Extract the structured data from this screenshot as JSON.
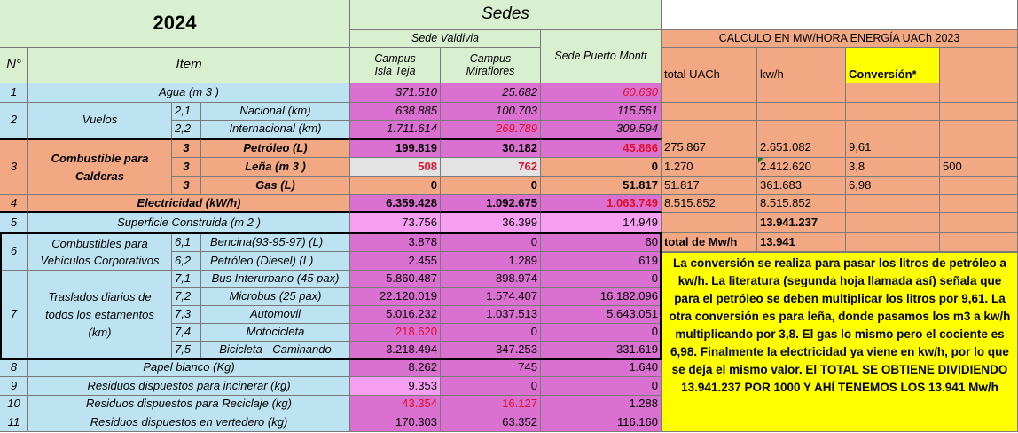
{
  "header": {
    "year": "2024",
    "sedes": "Sedes",
    "sede_valdivia": "Sede Valdivia",
    "campus_isla_teja": "Campus\nIsla Teja",
    "campus_miraflores": "Campus\nMiraflores",
    "sede_puerto_montt": "Sede Puerto Montt",
    "no": "N°",
    "item": "Item",
    "calc_title": "CALCULO EN MW/HORA ENERGÍA UACh 2023",
    "total_uach": "total UACh",
    "kwh": "kw/h",
    "conversion": "Conversión*"
  },
  "rows": {
    "r1": {
      "no": "1",
      "item": "Agua (m 3 )",
      "v1": "371.510",
      "v2": "25.682",
      "v3": "60.630"
    },
    "vuelos": {
      "no": "2",
      "label": "Vuelos"
    },
    "r21": {
      "sub": "2,1",
      "item": "Nacional (km)",
      "v1": "638.885",
      "v2": "100.703",
      "v3": "115.561"
    },
    "r22": {
      "sub": "2,2",
      "item": "Internacional (km)",
      "v1": "1.711.614",
      "v2": "269.789",
      "v3": "309.594"
    },
    "comb": {
      "no": "3",
      "label": "Combustible para Calderas"
    },
    "r3a": {
      "sub": "3",
      "item": "Petróleo (L)",
      "v1": "199.819",
      "v2": "30.182",
      "v3": "45.866",
      "t": "275.867",
      "k": "2.651.082",
      "cv": "9,61"
    },
    "r3b": {
      "sub": "3",
      "item": "Leña (m 3 )",
      "v1": "508",
      "v2": "762",
      "v3": "0",
      "t": "1.270",
      "k": "2.412.620",
      "cv": "3,8",
      "x": "500"
    },
    "r3c": {
      "sub": "3",
      "item": "Gas (L)",
      "v1": "0",
      "v2": "0",
      "v3": "51.817",
      "t": "51.817",
      "k": "361.683",
      "cv": "6,98"
    },
    "r4": {
      "no": "4",
      "item": "Electricidad (kW/h)",
      "v1": "6.359.428",
      "v2": "1.092.675",
      "v3": "1.063.749",
      "t": "8.515.852",
      "k": "8.515.852"
    },
    "r5": {
      "no": "5",
      "item": "Superficie Construida (m 2 )",
      "v1": "73.756",
      "v2": "36.399",
      "v3": "14.949",
      "k": "13.941.237"
    },
    "veh": {
      "no": "6",
      "label": "Combustibles para Vehículos Corporativos"
    },
    "r61": {
      "sub": "6,1",
      "item": "Bencina(93-95-97) (L)",
      "v1": "3.878",
      "v2": "0",
      "v3": "60",
      "t": "total de Mw/h",
      "k": "13.941"
    },
    "r62": {
      "sub": "6,2",
      "item": "Petróleo (Diesel) (L)",
      "v1": "2.455",
      "v2": "1.289",
      "v3": "619"
    },
    "tras": {
      "no": "7",
      "label": "Traslados diarios de todos los estamentos (km)"
    },
    "r71": {
      "sub": "7,1",
      "item": "Bus Interurbano (45 pax)",
      "v1": "5.860.487",
      "v2": "898.974",
      "v3": "0"
    },
    "r72": {
      "sub": "7,2",
      "item": "Microbus (25 pax)",
      "v1": "22.120.019",
      "v2": "1.574.407",
      "v3": "16.182.096"
    },
    "r73": {
      "sub": "7,3",
      "item": "Automovil",
      "v1": "5.016.232",
      "v2": "1.037.513",
      "v3": "5.643.051"
    },
    "r74": {
      "sub": "7,4",
      "item": "Motocicleta",
      "v1": "218.620",
      "v2": "0",
      "v3": "0"
    },
    "r75": {
      "sub": "7,5",
      "item": "Bicicleta - Caminando",
      "v1": "3.218.494",
      "v2": "347.253",
      "v3": "331.619"
    },
    "r8": {
      "no": "8",
      "item": "Papel blanco (Kg)",
      "v1": "8.262",
      "v2": "745",
      "v3": "1.640"
    },
    "r9": {
      "no": "9",
      "item": "Residuos dispuestos para incinerar (kg)",
      "v1": "9.353",
      "v2": "0",
      "v3": "0"
    },
    "r10": {
      "no": "10",
      "item": "Residuos dispuestos para Reciclaje (kg)",
      "v1": "43.354",
      "v2": "16.127",
      "v3": "1.288"
    },
    "r11": {
      "no": "11",
      "item": "Residuos dispuestos en vertedero (kg)",
      "v1": "170.303",
      "v2": "63.352",
      "v3": "116.160"
    }
  },
  "note": "La conversión se realiza para pasar los litros de petróleo a kw/h. La literatura (segunda hoja llamada así) señala que para el petróleo se deben multiplicar los litros por 9,61. La otra conversión es para leña, donde pasamos los m3 a kw/h multiplicando por 3,8. El gas lo mismo pero el cociente es 6,98. Finalmente la electricidad ya viene en kw/h, por lo que se deja el mismo valor. El TOTAL SE OBTIENE DIVIDIENDO 13.941.237 POR 1000 Y AHÍ TENEMOS LOS 13.941 Mw/h",
  "colors": {
    "green": "#d8efd0",
    "blue": "#bde3f3",
    "pink": "#da70d0",
    "orange": "#f2a983",
    "yellow": "#ffff00",
    "red_text": "#e0102a"
  }
}
